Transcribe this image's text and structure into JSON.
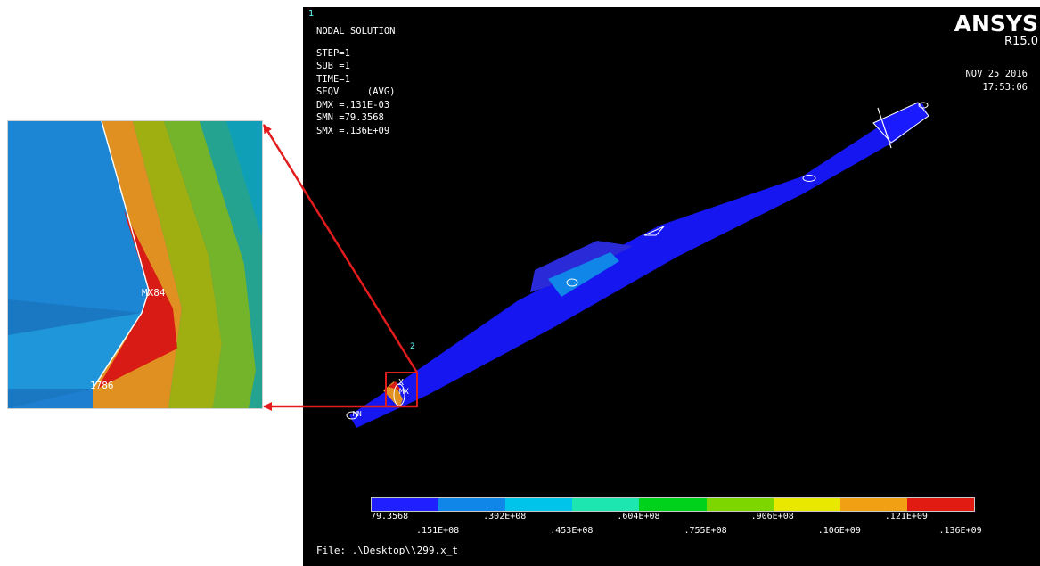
{
  "inset": {
    "labels": {
      "mx": "MX84",
      "mn": "1786"
    }
  },
  "viewport": {
    "window_number": "1",
    "top_node_label": "2",
    "info": {
      "title": "NODAL SOLUTION",
      "step": "STEP=1",
      "sub": "SUB =1",
      "time": "TIME=1",
      "seqv": "SEQV     (AVG)",
      "dmx": "DMX =.131E-03",
      "smn": "SMN =79.3568",
      "smx": "SMX =.136E+09"
    },
    "brand": {
      "name": "ANSYS",
      "version": "R15.0"
    },
    "datetime": {
      "date": "NOV 25 2016",
      "time": "17:53:06"
    },
    "model_labels": {
      "mn": "MN",
      "mx": "MX",
      "x": "X"
    },
    "legend": {
      "colors": [
        "#1f1fff",
        "#0f86e8",
        "#00c4ea",
        "#1ee6b0",
        "#00d21c",
        "#7ed600",
        "#e8e800",
        "#f0a012",
        "#e11b12"
      ],
      "ticks_top": [
        "79.3568",
        ".302E+08",
        ".604E+08",
        ".906E+08",
        ".121E+09"
      ],
      "ticks_bottom": [
        ".151E+08",
        ".453E+08",
        ".755E+08",
        ".106E+09",
        ".136E+09"
      ]
    },
    "file": "File: .\\Desktop\\\\299.x_t"
  }
}
